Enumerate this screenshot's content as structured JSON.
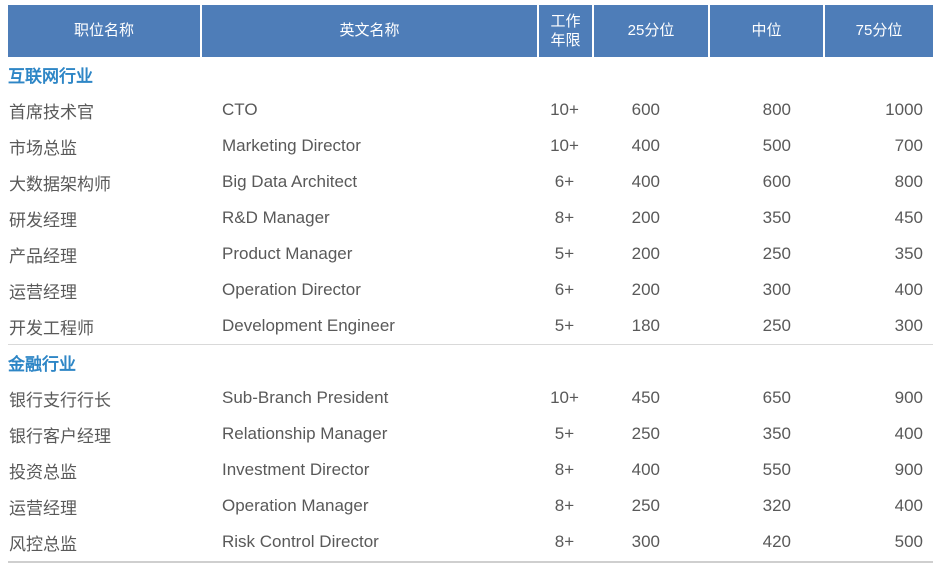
{
  "colors": {
    "header_bg": "#4e7db8",
    "header_text": "#ffffff",
    "section_text": "#2e86c6",
    "body_text": "#595959",
    "divider": "#d9d9d9"
  },
  "table": {
    "headers": {
      "position": "职位名称",
      "english": "英文名称",
      "years": "工作年限",
      "p25": "25分位",
      "median": "中位",
      "p75": "75分位"
    },
    "sections": [
      {
        "name": "互联网行业",
        "rows": [
          [
            "首席技术官",
            "CTO",
            "10+",
            "600",
            "800",
            "1000"
          ],
          [
            "市场总监",
            "Marketing Director",
            "10+",
            "400",
            "500",
            "700"
          ],
          [
            "大数据架构师",
            "Big Data Architect",
            "6+",
            "400",
            "600",
            "800"
          ],
          [
            "研发经理",
            "R&D Manager",
            "8+",
            "200",
            "350",
            "450"
          ],
          [
            "产品经理",
            "Product Manager",
            "5+",
            "200",
            "250",
            "350"
          ],
          [
            "运营经理",
            "Operation Director",
            "6+",
            "200",
            "300",
            "400"
          ],
          [
            "开发工程师",
            "Development Engineer",
            "5+",
            "180",
            "250",
            "300"
          ]
        ]
      },
      {
        "name": "金融行业",
        "rows": [
          [
            "银行支行行长",
            "Sub-Branch President",
            "10+",
            "450",
            "650",
            "900"
          ],
          [
            "银行客户经理",
            "Relationship Manager",
            "5+",
            "250",
            "350",
            "400"
          ],
          [
            "投资总监",
            "Investment Director",
            "8+",
            "400",
            "550",
            "900"
          ],
          [
            "运营经理",
            "Operation Manager",
            "8+",
            "250",
            "320",
            "400"
          ],
          [
            "风控总监",
            "Risk Control Director",
            "8+",
            "300",
            "420",
            "500"
          ]
        ]
      }
    ]
  }
}
